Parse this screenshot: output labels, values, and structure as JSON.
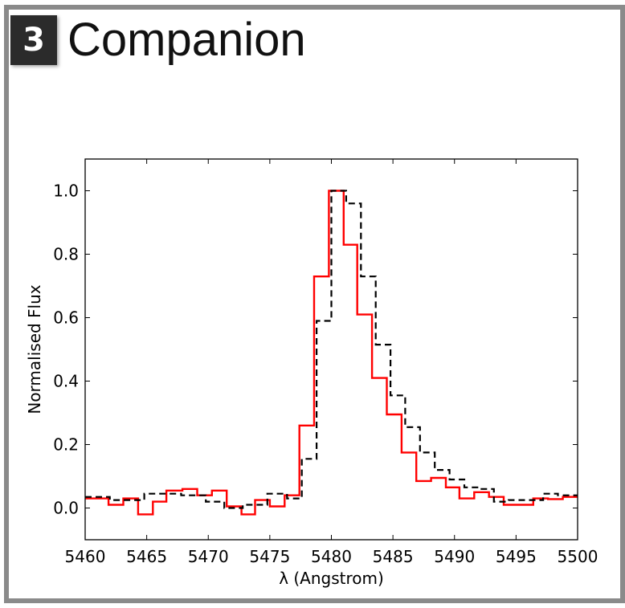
{
  "header": {
    "badge": "3",
    "title": "Companion"
  },
  "chart_data": {
    "type": "line",
    "drawstyle": "steps",
    "xlabel": "λ (Angstrom)",
    "ylabel": "Normalised Flux",
    "xlim": [
      5460,
      5500
    ],
    "ylim": [
      -0.1,
      1.1
    ],
    "xticks": [
      5460,
      5465,
      5470,
      5475,
      5480,
      5485,
      5490,
      5495,
      5500
    ],
    "yticks": [
      0.0,
      0.2,
      0.4,
      0.6,
      0.8,
      1.0
    ],
    "ytick_labels": [
      "0.0",
      "0.2",
      "0.4",
      "0.6",
      "0.8",
      "1.0"
    ],
    "grid": false,
    "series": [
      {
        "color": "#ff0000",
        "linestyle": "solid",
        "edges": [
          5460,
          5461.9,
          5463.1,
          5464.3,
          5465.5,
          5466.6,
          5467.9,
          5469.1,
          5470.3,
          5471.5,
          5472.7,
          5473.8,
          5475,
          5476.2,
          5477.4,
          5478.6,
          5479.8,
          5481,
          5482.1,
          5483.3,
          5484.5,
          5485.7,
          5486.9,
          5488.1,
          5489.3,
          5490.4,
          5491.6,
          5492.8,
          5494,
          5495.2,
          5496.4,
          5497.6,
          5498.8,
          5500
        ],
        "values": [
          0.03,
          0.01,
          0.03,
          -0.02,
          0.02,
          0.055,
          0.06,
          0.04,
          0.055,
          0.005,
          -0.02,
          0.025,
          0.005,
          0.04,
          0.26,
          0.73,
          1.0,
          0.83,
          0.61,
          0.41,
          0.295,
          0.175,
          0.085,
          0.095,
          0.065,
          0.03,
          0.05,
          0.035,
          0.01,
          0.01,
          0.03,
          0.028,
          0.035
        ]
      },
      {
        "color": "#000000",
        "linestyle": "dashed",
        "edges": [
          5460,
          5462,
          5464.8,
          5467.8,
          5469.8,
          5471.3,
          5472.8,
          5474.8,
          5476.4,
          5477.6,
          5478.8,
          5480,
          5481.2,
          5482.4,
          5483.6,
          5484.8,
          5486,
          5487.2,
          5488.4,
          5489.6,
          5490.8,
          5492,
          5493.2,
          5494.4,
          5497.2,
          5498.4,
          5500
        ],
        "values": [
          0.035,
          0.025,
          0.045,
          0.04,
          0.02,
          0.0,
          0.01,
          0.045,
          0.03,
          0.155,
          0.59,
          1.0,
          0.96,
          0.73,
          0.515,
          0.355,
          0.255,
          0.175,
          0.12,
          0.09,
          0.065,
          0.06,
          0.02,
          0.025,
          0.045,
          0.04
        ]
      }
    ]
  }
}
